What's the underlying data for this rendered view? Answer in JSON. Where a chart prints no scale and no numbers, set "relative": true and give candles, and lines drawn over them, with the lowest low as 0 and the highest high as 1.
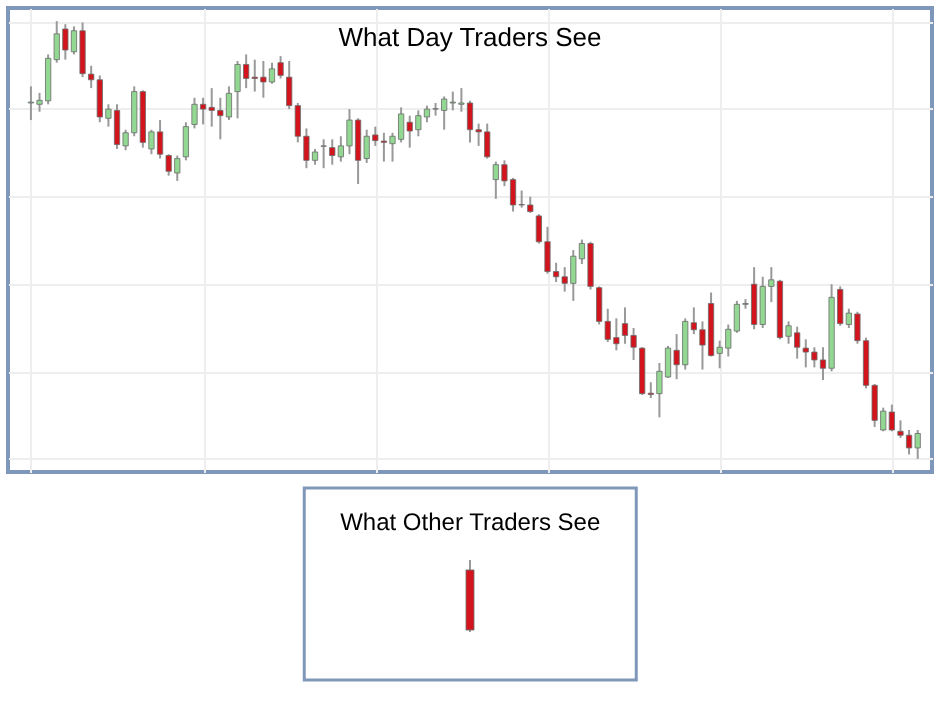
{
  "chart_data": [
    {
      "type": "candlestick",
      "title": "What Day Traders See",
      "relative": true,
      "grid": true,
      "categories": [
        null,
        null,
        null,
        null,
        null,
        null,
        null,
        null,
        null,
        null,
        null,
        null,
        null,
        null,
        null,
        null,
        null,
        null,
        null,
        null,
        null,
        null,
        null,
        null,
        null,
        null,
        null,
        null,
        null,
        null,
        null,
        null,
        null,
        null,
        null,
        null,
        null,
        null,
        null,
        null,
        null,
        null,
        null,
        null,
        null,
        null,
        null,
        null,
        null,
        null,
        null,
        null,
        null,
        null,
        null,
        null,
        null,
        null,
        null,
        null,
        null,
        null,
        null,
        null,
        null,
        null,
        null,
        null,
        null,
        null,
        null,
        null,
        null,
        null,
        null,
        null,
        null,
        null,
        null,
        null,
        null,
        null,
        null,
        null,
        null,
        null,
        null,
        null,
        null,
        null,
        null,
        null,
        null,
        null,
        null,
        null,
        null,
        null,
        null,
        null,
        null,
        null,
        null,
        null
      ],
      "ohlc": [
        [
          0.813,
          0.851,
          0.774,
          0.815
        ],
        [
          0.81,
          0.836,
          0.793,
          0.819
        ],
        [
          0.818,
          0.924,
          0.81,
          0.915
        ],
        [
          0.912,
          1,
          0.905,
          0.971
        ],
        [
          0.982,
          0.993,
          0.912,
          0.934
        ],
        [
          0.93,
          0.988,
          0.924,
          0.978
        ],
        [
          0.978,
          0.997,
          0.872,
          0.88
        ],
        [
          0.879,
          0.898,
          0.847,
          0.866
        ],
        [
          0.866,
          0.876,
          0.769,
          0.781
        ],
        [
          0.778,
          0.81,
          0.759,
          0.799
        ],
        [
          0.796,
          0.81,
          0.708,
          0.718
        ],
        [
          0.715,
          0.752,
          0.705,
          0.745
        ],
        [
          0.745,
          0.851,
          0.737,
          0.839
        ],
        [
          0.839,
          0.842,
          0.711,
          0.723
        ],
        [
          0.708,
          0.752,
          0.696,
          0.747
        ],
        [
          0.747,
          0.774,
          0.686,
          0.696
        ],
        [
          0.693,
          0.696,
          0.647,
          0.657
        ],
        [
          0.653,
          0.693,
          0.635,
          0.686
        ],
        [
          0.69,
          0.769,
          0.682,
          0.759
        ],
        [
          0.764,
          0.825,
          0.755,
          0.81
        ],
        [
          0.81,
          0.825,
          0.764,
          0.799
        ],
        [
          0.803,
          0.847,
          0.759,
          0.796
        ],
        [
          0.796,
          0.825,
          0.73,
          0.784
        ],
        [
          0.781,
          0.851,
          0.774,
          0.835
        ],
        [
          0.839,
          0.909,
          0.778,
          0.901
        ],
        [
          0.901,
          0.924,
          0.847,
          0.869
        ],
        [
          0.872,
          0.912,
          0.839,
          0.869
        ],
        [
          0.872,
          0.909,
          0.825,
          0.861
        ],
        [
          0.861,
          0.905,
          0.857,
          0.891
        ],
        [
          0.905,
          0.92,
          0.869,
          0.876
        ],
        [
          0.872,
          0.909,
          0.799,
          0.807
        ],
        [
          0.807,
          0.813,
          0.723,
          0.737
        ],
        [
          0.737,
          0.755,
          0.664,
          0.682
        ],
        [
          0.682,
          0.708,
          0.672,
          0.701
        ],
        [
          0.714,
          0.73,
          0.664,
          0.715
        ],
        [
          0.711,
          0.73,
          0.672,
          0.693
        ],
        [
          0.69,
          0.737,
          0.679,
          0.715
        ],
        [
          0.715,
          0.799,
          0.696,
          0.774
        ],
        [
          0.774,
          0.778,
          0.628,
          0.682
        ],
        [
          0.686,
          0.752,
          0.676,
          0.737
        ],
        [
          0.74,
          0.759,
          0.715,
          0.727
        ],
        [
          0.726,
          0.745,
          0.679,
          0.723
        ],
        [
          0.72,
          0.745,
          0.679,
          0.737
        ],
        [
          0.73,
          0.803,
          0.723,
          0.788
        ],
        [
          0.769,
          0.784,
          0.711,
          0.749
        ],
        [
          0.752,
          0.796,
          0.737,
          0.784
        ],
        [
          0.781,
          0.807,
          0.769,
          0.799
        ],
        [
          0.799,
          0.813,
          0.784,
          0.8
        ],
        [
          0.796,
          0.828,
          0.752,
          0.822
        ],
        [
          0.813,
          0.839,
          0.796,
          0.815
        ],
        [
          0.81,
          0.847,
          0.793,
          0.813
        ],
        [
          0.813,
          0.818,
          0.723,
          0.752
        ],
        [
          0.752,
          0.766,
          0.715,
          0.747
        ],
        [
          0.747,
          0.766,
          0.686,
          0.69
        ],
        [
          0.638,
          0.679,
          0.594,
          0.672
        ],
        [
          0.672,
          0.682,
          0.623,
          0.635
        ],
        [
          0.638,
          0.642,
          0.565,
          0.58
        ],
        [
          0.581,
          0.613,
          0.574,
          0.58
        ],
        [
          0.58,
          0.599,
          0.562,
          0.565
        ],
        [
          0.555,
          0.559,
          0.492,
          0.496
        ],
        [
          0.496,
          0.53,
          0.423,
          0.428
        ],
        [
          0.428,
          0.448,
          0.404,
          0.416
        ],
        [
          0.416,
          0.438,
          0.382,
          0.401
        ],
        [
          0.401,
          0.477,
          0.361,
          0.463
        ],
        [
          0.457,
          0.501,
          0.445,
          0.492
        ],
        [
          0.492,
          0.496,
          0.387,
          0.394
        ],
        [
          0.391,
          0.394,
          0.307,
          0.314
        ],
        [
          0.314,
          0.343,
          0.267,
          0.273
        ],
        [
          0.277,
          0.321,
          0.248,
          0.263
        ],
        [
          0.309,
          0.346,
          0.263,
          0.282
        ],
        [
          0.282,
          0.299,
          0.226,
          0.255
        ],
        [
          0.253,
          0.255,
          0.146,
          0.149
        ],
        [
          0.15,
          0.175,
          0.139,
          0.147
        ],
        [
          0.149,
          0.219,
          0.095,
          0.2
        ],
        [
          0.187,
          0.258,
          0.185,
          0.253
        ],
        [
          0.248,
          0.285,
          0.182,
          0.215
        ],
        [
          0.215,
          0.321,
          0.204,
          0.314
        ],
        [
          0.311,
          0.346,
          0.285,
          0.295
        ],
        [
          0.295,
          0.314,
          0.204,
          0.26
        ],
        [
          0.355,
          0.38,
          0.234,
          0.236
        ],
        [
          0.241,
          0.27,
          0.207,
          0.255
        ],
        [
          0.253,
          0.307,
          0.234,
          0.296
        ],
        [
          0.292,
          0.361,
          0.288,
          0.353
        ],
        [
          0.353,
          0.365,
          0.343,
          0.355
        ],
        [
          0.399,
          0.438,
          0.296,
          0.307
        ],
        [
          0.307,
          0.416,
          0.299,
          0.394
        ],
        [
          0.394,
          0.438,
          0.358,
          0.409
        ],
        [
          0.406,
          0.409,
          0.273,
          0.277
        ],
        [
          0.28,
          0.314,
          0.263,
          0.304
        ],
        [
          0.288,
          0.302,
          0.229,
          0.255
        ],
        [
          0.253,
          0.273,
          0.209,
          0.244
        ],
        [
          0.244,
          0.255,
          0.209,
          0.226
        ],
        [
          0.226,
          0.255,
          0.18,
          0.207
        ],
        [
          0.207,
          0.399,
          0.2,
          0.369
        ],
        [
          0.387,
          0.394,
          0.304,
          0.309
        ],
        [
          0.307,
          0.343,
          0.299,
          0.333
        ],
        [
          0.331,
          0.336,
          0.263,
          0.27
        ],
        [
          0.27,
          0.277,
          0.161,
          0.168
        ],
        [
          0.168,
          0.171,
          0.073,
          0.088
        ],
        [
          0.066,
          0.117,
          0.063,
          0.109
        ],
        [
          0.107,
          0.124,
          0.063,
          0.066
        ],
        [
          0.063,
          0.088,
          0.048,
          0.054
        ],
        [
          0.054,
          0.066,
          0.01,
          0.025
        ],
        [
          0.025,
          0.066,
          0,
          0.058
        ]
      ],
      "colors": [
        "#92d892",
        "#92d892",
        "#92d892",
        "#92d892",
        "#d4141c",
        "#92d892",
        "#d4141c",
        "#d4141c",
        "#d4141c",
        "#92d892",
        "#d4141c",
        "#92d892",
        "#92d892",
        "#d4141c",
        "#92d892",
        "#d4141c",
        "#d4141c",
        "#92d892",
        "#92d892",
        "#92d892",
        "#d4141c",
        "#d4141c",
        "#d4141c",
        "#92d892",
        "#92d892",
        "#d4141c",
        "#d4141c",
        "#d4141c",
        "#92d892",
        "#d4141c",
        "#d4141c",
        "#d4141c",
        "#d4141c",
        "#92d892",
        "#92d892",
        "#d4141c",
        "#92d892",
        "#92d892",
        "#d4141c",
        "#92d892",
        "#d4141c",
        "#d4141c",
        "#92d892",
        "#92d892",
        "#d4141c",
        "#92d892",
        "#92d892",
        "#92d892",
        "#92d892",
        "#92d892",
        "#92d892",
        "#d4141c",
        "#d4141c",
        "#d4141c",
        "#92d892",
        "#d4141c",
        "#d4141c",
        "#d4141c",
        "#d4141c",
        "#d4141c",
        "#d4141c",
        "#d4141c",
        "#d4141c",
        "#92d892",
        "#92d892",
        "#d4141c",
        "#d4141c",
        "#d4141c",
        "#d4141c",
        "#d4141c",
        "#d4141c",
        "#d4141c",
        "#d4141c",
        "#92d892",
        "#92d892",
        "#d4141c",
        "#92d892",
        "#d4141c",
        "#d4141c",
        "#d4141c",
        "#92d892",
        "#92d892",
        "#92d892",
        "#92d892",
        "#d4141c",
        "#92d892",
        "#92d892",
        "#d4141c",
        "#92d892",
        "#d4141c",
        "#d4141c",
        "#d4141c",
        "#d4141c",
        "#92d892",
        "#d4141c",
        "#92d892",
        "#d4141c",
        "#d4141c",
        "#d4141c",
        "#92d892",
        "#d4141c",
        "#d4141c",
        "#d4141c",
        "#92d892"
      ]
    },
    {
      "type": "other",
      "title": "What Other Traders See"
    }
  ]
}
